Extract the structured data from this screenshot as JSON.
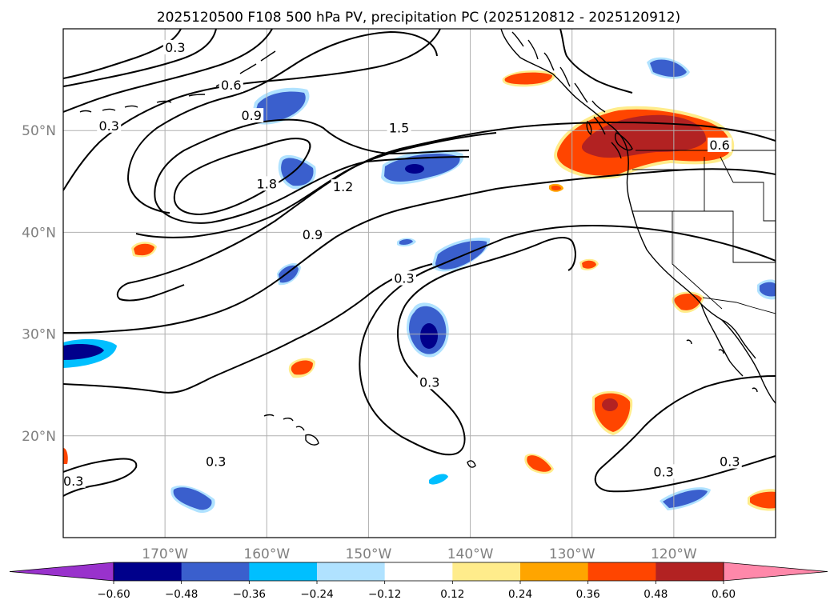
{
  "title": "2025120500 F108 500 hPa PV, precipitation PC (2025120812 - 2025120912)",
  "map": {
    "lon_ticks": [
      {
        "lon": -170,
        "label": "170°W"
      },
      {
        "lon": -160,
        "label": "160°W"
      },
      {
        "lon": -150,
        "label": "150°W"
      },
      {
        "lon": -140,
        "label": "140°W"
      },
      {
        "lon": -130,
        "label": "130°W"
      },
      {
        "lon": -120,
        "label": "120°W"
      }
    ],
    "lat_ticks": [
      {
        "lat": 50,
        "label": "50°N"
      },
      {
        "lat": 40,
        "label": "40°N"
      },
      {
        "lat": 30,
        "label": "30°N"
      },
      {
        "lat": 20,
        "label": "20°N"
      }
    ],
    "lon_range": [
      -180,
      -110
    ],
    "lat_range": [
      10,
      60
    ],
    "grid": true
  },
  "contour_labels": [
    {
      "text": "0.3",
      "lon": -179,
      "lat": 15.6
    },
    {
      "text": "0.3",
      "lon": -165,
      "lat": 17.5
    },
    {
      "text": "0.3",
      "lon": -144,
      "lat": 25.3
    },
    {
      "text": "0.3",
      "lon": -146.5,
      "lat": 35.5
    },
    {
      "text": "0.3",
      "lon": -121,
      "lat": 16.5
    },
    {
      "text": "0.3",
      "lon": -114.5,
      "lat": 17.5
    },
    {
      "text": "0.3",
      "lon": -175.5,
      "lat": 50.5
    },
    {
      "text": "0.3",
      "lon": -169,
      "lat": 58.2
    },
    {
      "text": "0.6",
      "lon": -163.5,
      "lat": 54.5
    },
    {
      "text": "0.6",
      "lon": -115.5,
      "lat": 48.6
    },
    {
      "text": "0.9",
      "lon": -161.5,
      "lat": 51.5
    },
    {
      "text": "0.9",
      "lon": -155.5,
      "lat": 39.8
    },
    {
      "text": "1.2",
      "lon": -152.5,
      "lat": 44.5
    },
    {
      "text": "1.5",
      "lon": -147,
      "lat": 50.3
    },
    {
      "text": "1.8",
      "lon": -160,
      "lat": 44.8
    }
  ],
  "colorbar": {
    "levels": [
      -0.6,
      -0.48,
      -0.36,
      -0.24,
      -0.12,
      0.12,
      0.24,
      0.36,
      0.48,
      0.6
    ],
    "tick_labels": [
      "−0.60",
      "−0.48",
      "−0.36",
      "−0.24",
      "−0.12",
      "0.12",
      "0.24",
      "0.36",
      "0.48",
      "0.60"
    ],
    "colors": [
      "#9932cc",
      "#00008b",
      "#3a5fcd",
      "#00bfff",
      "#b0e2ff",
      "#ffffff",
      "#ffec8b",
      "#ffa500",
      "#ff4500",
      "#b22222",
      "#ff88aa"
    ],
    "extend": "both"
  },
  "colors": {
    "dark_blue": "#00008b",
    "blue": "#3a5fcd",
    "cyan": "#00bfff",
    "light_blue": "#b0e2ff",
    "yellow": "#ffec8b",
    "orange": "#ffa500",
    "red_orange": "#ff4500",
    "dark_red": "#b22222"
  }
}
